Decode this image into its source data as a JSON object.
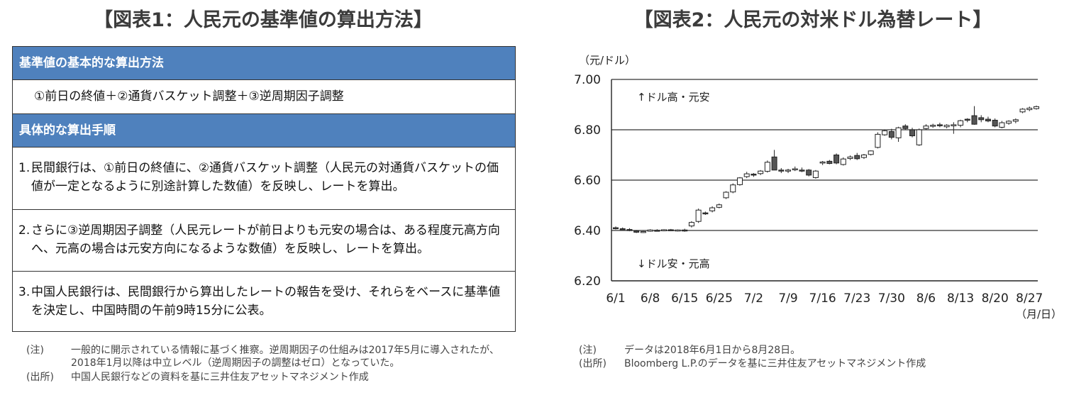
{
  "left": {
    "title": "【図表1：人民元の基準値の算出方法】",
    "header1": "基準値の基本的な算出方法",
    "formula": "①前日の終値＋②通貨バスケット調整＋③逆周期因子調整",
    "header2": "具体的な算出手順",
    "steps": [
      {
        "num": "1.",
        "text": "民間銀行は、①前日の終値に、②通貨バスケット調整（人民元の対通貨バスケットの価値が一定となるように別途計算した数値）を反映し、レートを算出。"
      },
      {
        "num": "2.",
        "text": "さらに③逆周期因子調整（人民元レートが前日よりも元安の場合は、ある程度元高方向へ、元高の場合は元安方向になるような数値）を反映し、レートを算出。"
      },
      {
        "num": "3.",
        "text": "中国人民銀行は、民間銀行から算出したレートの報告を受け、それらをベースに基準値を決定し、中国時間の午前9時15分に公表。"
      }
    ],
    "notes": [
      {
        "label": "(注)",
        "text": "一般的に開示されている情報に基づく推察。逆周期因子の仕組みは2017年5月に導入されたが、2018年1月以降は中立レベル（逆周期因子の調整はゼロ）となっていた。"
      },
      {
        "label": "(出所)",
        "text": "中国人民銀行などの資料を基に三井住友アセットマネジメント作成"
      }
    ]
  },
  "right": {
    "title": "【図表2：人民元の対米ドル為替レート】",
    "notes": [
      {
        "label": "(注)",
        "text": "データは2018年6月1日から8月28日。"
      },
      {
        "label": "(出所)",
        "text": "Bloomberg L.P.のデータを基に三井住友アセットマネジメント作成"
      }
    ]
  },
  "chart_data": {
    "type": "candlestick",
    "ylabel": "（元/ドル）",
    "xlabel": "（月/日）",
    "ylim": [
      6.2,
      7.0
    ],
    "yticks": [
      "7.00",
      "6.80",
      "6.60",
      "6.40",
      "6.20"
    ],
    "ytick_values": [
      7.0,
      6.8,
      6.6,
      6.4,
      6.2
    ],
    "xticks": [
      "6/1",
      "6/8",
      "6/15",
      "6/25",
      "7/2",
      "7/9",
      "7/16",
      "7/23",
      "7/30",
      "8/6",
      "8/13",
      "8/20",
      "8/27"
    ],
    "grid": true,
    "annotations": [
      "↑ドル高・元安",
      "↓ドル安・元高"
    ],
    "colors": {
      "up": "#ffffff",
      "down": "#555555",
      "line": "#222222",
      "grid": "#555555"
    },
    "candles": [
      {
        "date": "6/1",
        "o": 6.411,
        "h": 6.416,
        "l": 6.404,
        "c": 6.409
      },
      {
        "date": "6/4",
        "o": 6.407,
        "h": 6.412,
        "l": 6.402,
        "c": 6.404
      },
      {
        "date": "6/5",
        "o": 6.404,
        "h": 6.409,
        "l": 6.397,
        "c": 6.401
      },
      {
        "date": "6/6",
        "o": 6.398,
        "h": 6.401,
        "l": 6.39,
        "c": 6.393
      },
      {
        "date": "6/7",
        "o": 6.393,
        "h": 6.398,
        "l": 6.39,
        "c": 6.396
      },
      {
        "date": "6/8",
        "o": 6.397,
        "h": 6.405,
        "l": 6.395,
        "c": 6.402
      },
      {
        "date": "6/11",
        "o": 6.401,
        "h": 6.405,
        "l": 6.396,
        "c": 6.399
      },
      {
        "date": "6/12",
        "o": 6.399,
        "h": 6.405,
        "l": 6.397,
        "c": 6.403
      },
      {
        "date": "6/13",
        "o": 6.403,
        "h": 6.406,
        "l": 6.398,
        "c": 6.4
      },
      {
        "date": "6/14",
        "o": 6.4,
        "h": 6.404,
        "l": 6.396,
        "c": 6.402
      },
      {
        "date": "6/15",
        "o": 6.402,
        "h": 6.407,
        "l": 6.395,
        "c": 6.399
      },
      {
        "date": "6/19",
        "o": 6.418,
        "h": 6.437,
        "l": 6.412,
        "c": 6.432
      },
      {
        "date": "6/20",
        "o": 6.436,
        "h": 6.487,
        "l": 6.43,
        "c": 6.481
      },
      {
        "date": "6/21",
        "o": 6.47,
        "h": 6.475,
        "l": 6.462,
        "c": 6.466
      },
      {
        "date": "6/22",
        "o": 6.478,
        "h": 6.496,
        "l": 6.472,
        "c": 6.49
      },
      {
        "date": "6/25",
        "o": 6.492,
        "h": 6.507,
        "l": 6.488,
        "c": 6.502
      },
      {
        "date": "6/26",
        "o": 6.53,
        "h": 6.556,
        "l": 6.525,
        "c": 6.552
      },
      {
        "date": "6/27",
        "o": 6.553,
        "h": 6.587,
        "l": 6.548,
        "c": 6.581
      },
      {
        "date": "6/28",
        "o": 6.582,
        "h": 6.612,
        "l": 6.578,
        "c": 6.609
      },
      {
        "date": "6/29",
        "o": 6.614,
        "h": 6.633,
        "l": 6.608,
        "c": 6.625
      },
      {
        "date": "7/2",
        "o": 6.624,
        "h": 6.628,
        "l": 6.613,
        "c": 6.62
      },
      {
        "date": "7/3",
        "o": 6.626,
        "h": 6.64,
        "l": 6.62,
        "c": 6.636
      },
      {
        "date": "7/4",
        "o": 6.635,
        "h": 6.678,
        "l": 6.63,
        "c": 6.671
      },
      {
        "date": "7/5",
        "o": 6.692,
        "h": 6.72,
        "l": 6.64,
        "c": 6.64
      },
      {
        "date": "7/6",
        "o": 6.64,
        "h": 6.648,
        "l": 6.628,
        "c": 6.636
      },
      {
        "date": "7/9",
        "o": 6.636,
        "h": 6.645,
        "l": 6.628,
        "c": 6.64
      },
      {
        "date": "7/10",
        "o": 6.643,
        "h": 6.654,
        "l": 6.636,
        "c": 6.645
      },
      {
        "date": "7/11",
        "o": 6.64,
        "h": 6.65,
        "l": 6.632,
        "c": 6.636
      },
      {
        "date": "7/12",
        "o": 6.64,
        "h": 6.644,
        "l": 6.615,
        "c": 6.62
      },
      {
        "date": "7/13",
        "o": 6.61,
        "h": 6.64,
        "l": 6.606,
        "c": 6.636
      },
      {
        "date": "7/16",
        "o": 6.67,
        "h": 6.676,
        "l": 6.66,
        "c": 6.672
      },
      {
        "date": "7/17",
        "o": 6.675,
        "h": 6.68,
        "l": 6.663,
        "c": 6.666
      },
      {
        "date": "7/18",
        "o": 6.7,
        "h": 6.706,
        "l": 6.663,
        "c": 6.668
      },
      {
        "date": "7/19",
        "o": 6.662,
        "h": 6.69,
        "l": 6.658,
        "c": 6.684
      },
      {
        "date": "7/20",
        "o": 6.686,
        "h": 6.698,
        "l": 6.68,
        "c": 6.692
      },
      {
        "date": "7/23",
        "o": 6.698,
        "h": 6.708,
        "l": 6.68,
        "c": 6.685
      },
      {
        "date": "7/24",
        "o": 6.69,
        "h": 6.704,
        "l": 6.684,
        "c": 6.7
      },
      {
        "date": "7/25",
        "o": 6.702,
        "h": 6.718,
        "l": 6.698,
        "c": 6.716
      },
      {
        "date": "7/26",
        "o": 6.73,
        "h": 6.79,
        "l": 6.726,
        "c": 6.782
      },
      {
        "date": "7/27",
        "o": 6.78,
        "h": 6.8,
        "l": 6.776,
        "c": 6.796
      },
      {
        "date": "7/30",
        "o": 6.793,
        "h": 6.804,
        "l": 6.762,
        "c": 6.77
      },
      {
        "date": "7/31",
        "o": 6.768,
        "h": 6.812,
        "l": 6.752,
        "c": 6.808
      },
      {
        "date": "8/1",
        "o": 6.815,
        "h": 6.822,
        "l": 6.8,
        "c": 6.805
      },
      {
        "date": "8/2",
        "o": 6.8,
        "h": 6.808,
        "l": 6.77,
        "c": 6.776
      },
      {
        "date": "8/3",
        "o": 6.74,
        "h": 6.805,
        "l": 6.736,
        "c": 6.8
      },
      {
        "date": "8/6",
        "o": 6.805,
        "h": 6.822,
        "l": 6.8,
        "c": 6.815
      },
      {
        "date": "8/7",
        "o": 6.814,
        "h": 6.824,
        "l": 6.808,
        "c": 6.818
      },
      {
        "date": "8/8",
        "o": 6.82,
        "h": 6.828,
        "l": 6.81,
        "c": 6.816
      },
      {
        "date": "8/9",
        "o": 6.812,
        "h": 6.822,
        "l": 6.806,
        "c": 6.818
      },
      {
        "date": "8/10",
        "o": 6.818,
        "h": 6.83,
        "l": 6.784,
        "c": 6.82
      },
      {
        "date": "8/13",
        "o": 6.818,
        "h": 6.84,
        "l": 6.81,
        "c": 6.836
      },
      {
        "date": "8/14",
        "o": 6.842,
        "h": 6.846,
        "l": 6.83,
        "c": 6.838
      },
      {
        "date": "8/15",
        "o": 6.856,
        "h": 6.894,
        "l": 6.82,
        "c": 6.822
      },
      {
        "date": "8/16",
        "o": 6.848,
        "h": 6.858,
        "l": 6.83,
        "c": 6.84
      },
      {
        "date": "8/17",
        "o": 6.842,
        "h": 6.852,
        "l": 6.83,
        "c": 6.835
      },
      {
        "date": "8/20",
        "o": 6.838,
        "h": 6.845,
        "l": 6.81,
        "c": 6.815
      },
      {
        "date": "8/21",
        "o": 6.81,
        "h": 6.835,
        "l": 6.806,
        "c": 6.828
      },
      {
        "date": "8/22",
        "o": 6.826,
        "h": 6.838,
        "l": 6.82,
        "c": 6.834
      },
      {
        "date": "8/23",
        "o": 6.834,
        "h": 6.845,
        "l": 6.826,
        "c": 6.84
      },
      {
        "date": "8/24",
        "o": 6.871,
        "h": 6.886,
        "l": 6.866,
        "c": 6.882
      },
      {
        "date": "8/27",
        "o": 6.88,
        "h": 6.892,
        "l": 6.874,
        "c": 6.886
      },
      {
        "date": "8/28",
        "o": 6.884,
        "h": 6.896,
        "l": 6.88,
        "c": 6.892
      }
    ]
  }
}
